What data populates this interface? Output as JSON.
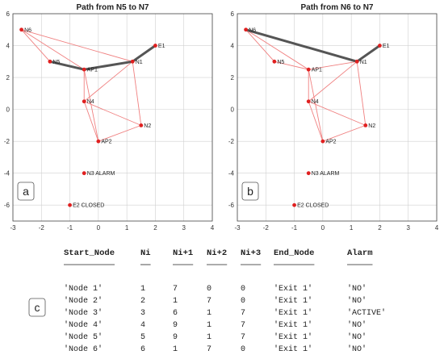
{
  "chart_data": [
    {
      "type": "scatter",
      "panel_label": "a",
      "title": "Path from N5 to N7",
      "xlim": [
        -3,
        4
      ],
      "ylim": [
        -7,
        6
      ],
      "xticks": [
        -3,
        -2,
        -1,
        0,
        1,
        2,
        3,
        4
      ],
      "yticks": [
        -6,
        -4,
        -2,
        0,
        2,
        4,
        6
      ],
      "grid": true,
      "nodes": [
        {
          "label": "N6",
          "x": -2.7,
          "y": 5.0
        },
        {
          "label": "N5",
          "x": -1.7,
          "y": 3.0
        },
        {
          "label": "AP1",
          "x": -0.5,
          "y": 2.5
        },
        {
          "label": "N1",
          "x": 1.2,
          "y": 3.0
        },
        {
          "label": "E1",
          "x": 2.0,
          "y": 4.0
        },
        {
          "label": "N4",
          "x": -0.5,
          "y": 0.5
        },
        {
          "label": "N2",
          "x": 1.5,
          "y": -1.0
        },
        {
          "label": "AP2",
          "x": 0.0,
          "y": -2.0
        },
        {
          "label": "N3 ALARM",
          "x": -0.5,
          "y": -4.0
        },
        {
          "label": "E2 CLOSED",
          "x": -1.0,
          "y": -6.0
        }
      ],
      "edges": [
        [
          "N6",
          "N5"
        ],
        [
          "N6",
          "AP1"
        ],
        [
          "N6",
          "N1"
        ],
        [
          "N5",
          "AP1"
        ],
        [
          "AP1",
          "N1"
        ],
        [
          "N1",
          "E1"
        ],
        [
          "AP1",
          "N4"
        ],
        [
          "N1",
          "N4"
        ],
        [
          "N1",
          "N2"
        ],
        [
          "N4",
          "N2"
        ],
        [
          "N4",
          "AP2"
        ],
        [
          "AP2",
          "N2"
        ],
        [
          "AP1",
          "AP2"
        ],
        [
          "E1",
          "N1"
        ]
      ],
      "path": [
        "N5",
        "AP1",
        "N1",
        "E1"
      ]
    },
    {
      "type": "scatter",
      "panel_label": "b",
      "title": "Path from N6 to N7",
      "xlim": [
        -3,
        4
      ],
      "ylim": [
        -7,
        6
      ],
      "xticks": [
        -3,
        -2,
        -1,
        0,
        1,
        2,
        3,
        4
      ],
      "yticks": [
        -6,
        -4,
        -2,
        0,
        2,
        4,
        6
      ],
      "grid": true,
      "nodes": [
        {
          "label": "N6",
          "x": -2.7,
          "y": 5.0
        },
        {
          "label": "N5",
          "x": -1.7,
          "y": 3.0
        },
        {
          "label": "AP1",
          "x": -0.5,
          "y": 2.5
        },
        {
          "label": "N1",
          "x": 1.2,
          "y": 3.0
        },
        {
          "label": "E1",
          "x": 2.0,
          "y": 4.0
        },
        {
          "label": "N4",
          "x": -0.5,
          "y": 0.5
        },
        {
          "label": "N2",
          "x": 1.5,
          "y": -1.0
        },
        {
          "label": "AP2",
          "x": 0.0,
          "y": -2.0
        },
        {
          "label": "N3 ALARM",
          "x": -0.5,
          "y": -4.0
        },
        {
          "label": "E2 CLOSED",
          "x": -1.0,
          "y": -6.0
        }
      ],
      "edges": [
        [
          "N6",
          "N5"
        ],
        [
          "N6",
          "AP1"
        ],
        [
          "N6",
          "N1"
        ],
        [
          "N5",
          "AP1"
        ],
        [
          "AP1",
          "N1"
        ],
        [
          "N1",
          "E1"
        ],
        [
          "AP1",
          "N4"
        ],
        [
          "N1",
          "N4"
        ],
        [
          "N1",
          "N2"
        ],
        [
          "N4",
          "N2"
        ],
        [
          "N4",
          "AP2"
        ],
        [
          "AP2",
          "N2"
        ],
        [
          "AP1",
          "AP2"
        ]
      ],
      "path": [
        "N6",
        "N1",
        "E1"
      ]
    },
    {
      "type": "table",
      "panel_label": "c",
      "columns": [
        "Start_Node",
        "Ni",
        "Ni+1",
        "Ni+2",
        "Ni+3",
        "End_Node",
        "Alarm"
      ],
      "rows": [
        [
          "'Node 1'",
          "1",
          "7",
          "0",
          "0",
          "'Exit 1'",
          "'NO'"
        ],
        [
          "'Node 2'",
          "2",
          "1",
          "7",
          "0",
          "'Exit 1'",
          "'NO'"
        ],
        [
          "'Node 3'",
          "3",
          "6",
          "1",
          "7",
          "'Exit 1'",
          "'ACTIVE'"
        ],
        [
          "'Node 4'",
          "4",
          "9",
          "1",
          "7",
          "'Exit 1'",
          "'NO'"
        ],
        [
          "'Node 5'",
          "5",
          "9",
          "1",
          "7",
          "'Exit 1'",
          "'NO'"
        ],
        [
          "'Node 6'",
          "6",
          "1",
          "7",
          "0",
          "'Exit 1'",
          "'NO'"
        ]
      ]
    }
  ],
  "colors": {
    "edge": "#f08080",
    "path": "#555555",
    "node": "#e02020",
    "grid": "#d0d0d0",
    "frame": "#444444"
  }
}
